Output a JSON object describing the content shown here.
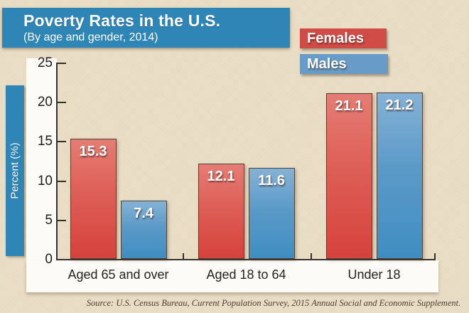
{
  "page": {
    "title": "Poverty Rates in the U.S.",
    "subtitle": "(By age and gender, 2014)",
    "source": "Source: U.S. Census Bureau, Current Population Survey, 2015 Annual Social and Economic Supplement."
  },
  "legend": {
    "females": {
      "label": "Females",
      "color": "#d14b46"
    },
    "males": {
      "label": "Males",
      "color": "#689bc7"
    }
  },
  "colors": {
    "banner_blue": "#2e86b7",
    "female_bar_top": "#e57d74",
    "female_bar_bottom": "#d6423c",
    "male_bar_top": "#85b2d6",
    "male_bar_bottom": "#3f8ec1",
    "bar_border": "#4f4337",
    "background_tan": "#e9ddc4",
    "axis": "#35302a"
  },
  "chart_data": {
    "type": "bar",
    "title": "Poverty Rates in the U.S.",
    "subtitle": "(By age and gender, 2014)",
    "ylabel": "Percent (%)",
    "xlabel": "",
    "ylim": [
      0,
      25
    ],
    "yticks": [
      0,
      5,
      10,
      15,
      20,
      25
    ],
    "grid": false,
    "legend_position": "top-right",
    "categories": [
      "Aged 65 and over",
      "Aged 18 to 64",
      "Under 18"
    ],
    "series": [
      {
        "name": "Females",
        "values": [
          15.3,
          12.1,
          21.1
        ]
      },
      {
        "name": "Males",
        "values": [
          7.4,
          11.6,
          21.2
        ]
      }
    ]
  }
}
